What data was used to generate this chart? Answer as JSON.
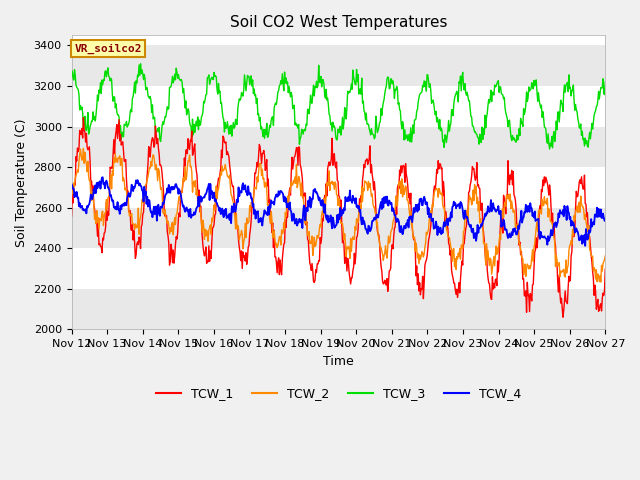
{
  "title": "Soil CO2 West Temperatures",
  "ylabel": "Soil Temperature (C)",
  "xlabel": "Time",
  "ylim": [
    2000,
    3450
  ],
  "legend_label": "VR_soilco2",
  "series_labels": [
    "TCW_1",
    "TCW_2",
    "TCW_3",
    "TCW_4"
  ],
  "series_colors": [
    "#ff0000",
    "#ff8800",
    "#00dd00",
    "#0000ff"
  ],
  "xtick_labels": [
    "Nov 12",
    "Nov 13",
    "Nov 14",
    "Nov 15",
    "Nov 16",
    "Nov 17",
    "Nov 18",
    "Nov 19",
    "Nov 20",
    "Nov 21",
    "Nov 22",
    "Nov 23",
    "Nov 24",
    "Nov 25",
    "Nov 26",
    "Nov 27"
  ],
  "ytick_values": [
    2000,
    2200,
    2400,
    2600,
    2800,
    3000,
    3200,
    3400
  ],
  "band_light": "#ffffff",
  "band_dark": "#e8e8e8",
  "fig_bg": "#f0f0f0",
  "title_fontsize": 11,
  "axis_label_fontsize": 9,
  "tick_fontsize": 8,
  "n_days": 15,
  "n_pts": 720
}
